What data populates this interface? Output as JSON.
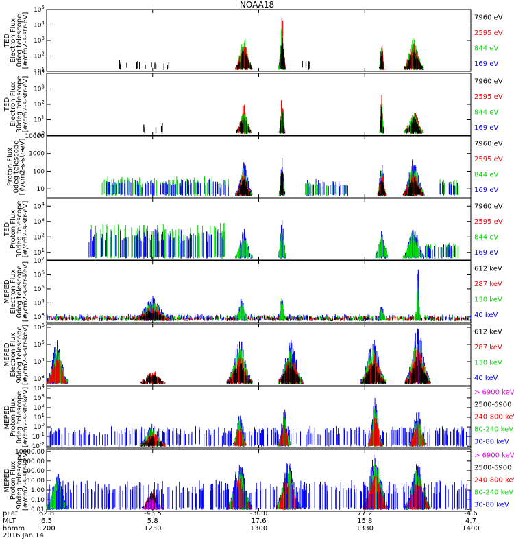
{
  "title": "NOAA18",
  "colors": {
    "black": "#000000",
    "red": "#ee0000",
    "green": "#00dd00",
    "blue": "#0000ff",
    "magenta": "#ee00ee"
  },
  "xaxis": {
    "rows": [
      {
        "label": "pLat",
        "values": [
          "62.8",
          "-43.5",
          "-30.0",
          "77.2",
          "-4.6"
        ]
      },
      {
        "label": "MLT",
        "values": [
          "6.5",
          "5.8",
          "17.6",
          "15.8",
          "4.7"
        ]
      },
      {
        "label": "hhmm",
        "values": [
          "1200",
          "1230",
          "1300",
          "1330",
          "1400"
        ]
      }
    ],
    "date": "2016 Jan 14"
  },
  "chart_data": [
    {
      "type": "line",
      "ylabel": [
        "TED",
        "Electron Flux",
        "0deg telescope",
        "[#/cm2-s-str-eV]"
      ],
      "ylabels": [
        "10^1",
        "10^2",
        "10^3",
        "10^4",
        "10^5"
      ],
      "yfirst": 1,
      "ylog": true,
      "ylim": [
        1,
        5
      ],
      "legend": [
        {
          "text": "7960 eV",
          "color": "black"
        },
        {
          "text": "2595 eV",
          "color": "red"
        },
        {
          "text": "844 eV",
          "color": "green"
        },
        {
          "text": "169 eV",
          "color": "blue"
        }
      ],
      "bursts": [
        {
          "c": 0.465,
          "w": 0.04,
          "peak": 0.52,
          "colors": [
            "green",
            "red",
            "black"
          ],
          "mode": "dense"
        },
        {
          "c": 0.555,
          "w": 0.016,
          "peak": 0.9,
          "colors": [
            "red",
            "green",
            "black"
          ],
          "mode": "dense"
        },
        {
          "c": 0.79,
          "w": 0.012,
          "peak": 0.52,
          "colors": [
            "green",
            "red",
            "black"
          ],
          "mode": "dense"
        },
        {
          "c": 0.865,
          "w": 0.045,
          "peak": 0.52,
          "colors": [
            "green",
            "red",
            "black"
          ],
          "mode": "dense"
        },
        {
          "c": 0.23,
          "w": 0.12,
          "peak": 0.12,
          "colors": [
            "black"
          ],
          "mode": "sparse"
        },
        {
          "c": 0.61,
          "w": 0.04,
          "peak": 0.12,
          "colors": [
            "black"
          ],
          "mode": "sparse"
        }
      ]
    },
    {
      "type": "line",
      "ylabel": [
        "TED",
        "Electron Flux",
        "30deg telescope",
        "[#/cm2-s-str-eV]"
      ],
      "ylabels": [
        "10^0",
        "10^1",
        "10^2",
        "10^3",
        "10^4"
      ],
      "yfirst": 0,
      "ylog": true,
      "ylim": [
        0,
        4
      ],
      "legend": [
        {
          "text": "7960 eV",
          "color": "black"
        },
        {
          "text": "2595 eV",
          "color": "red"
        },
        {
          "text": "844 eV",
          "color": "green"
        },
        {
          "text": "169 eV",
          "color": "blue"
        }
      ],
      "bursts": [
        {
          "c": 0.465,
          "w": 0.035,
          "peak": 0.45,
          "colors": [
            "red",
            "green",
            "black"
          ],
          "mode": "dense"
        },
        {
          "c": 0.555,
          "w": 0.014,
          "peak": 0.7,
          "colors": [
            "red",
            "green",
            "black"
          ],
          "mode": "dense"
        },
        {
          "c": 0.79,
          "w": 0.01,
          "peak": 0.75,
          "colors": [
            "red",
            "green",
            "black"
          ],
          "mode": "dense"
        },
        {
          "c": 0.865,
          "w": 0.045,
          "peak": 0.38,
          "colors": [
            "red",
            "green",
            "black"
          ],
          "mode": "dense"
        },
        {
          "c": 0.25,
          "w": 0.05,
          "peak": 0.15,
          "colors": [
            "black"
          ],
          "mode": "sparse"
        }
      ]
    },
    {
      "type": "line",
      "ylabel": [
        "Proton Flux",
        "0deg telescope",
        "[#/cm2-s-str-eV]"
      ],
      "ylabels": [
        "10",
        "100",
        "1000",
        "10000"
      ],
      "yfirst": 1,
      "ylog": true,
      "ylim": [
        0.5,
        4
      ],
      "legend": [
        {
          "text": "7960 eV",
          "color": "black"
        },
        {
          "text": "2595 eV",
          "color": "red"
        },
        {
          "text": "844 eV",
          "color": "green"
        },
        {
          "text": "169 eV",
          "color": "blue"
        }
      ],
      "bursts": [
        {
          "c": 0.28,
          "w": 0.3,
          "peak": 0.3,
          "colors": [
            "green",
            "blue"
          ],
          "mode": "noise"
        },
        {
          "c": 0.465,
          "w": 0.04,
          "peak": 0.55,
          "colors": [
            "blue",
            "green",
            "red",
            "black"
          ],
          "mode": "dense"
        },
        {
          "c": 0.555,
          "w": 0.014,
          "peak": 0.7,
          "colors": [
            "blue",
            "green",
            "black"
          ],
          "mode": "dense"
        },
        {
          "c": 0.79,
          "w": 0.02,
          "peak": 0.55,
          "colors": [
            "blue",
            "green",
            "red",
            "black"
          ],
          "mode": "dense"
        },
        {
          "c": 0.865,
          "w": 0.05,
          "peak": 0.6,
          "colors": [
            "blue",
            "green",
            "red",
            "black"
          ],
          "mode": "dense"
        },
        {
          "c": 0.66,
          "w": 0.1,
          "peak": 0.25,
          "colors": [
            "blue",
            "green"
          ],
          "mode": "noise"
        },
        {
          "c": 0.95,
          "w": 0.05,
          "peak": 0.25,
          "colors": [
            "green",
            "blue"
          ],
          "mode": "noise"
        }
      ]
    },
    {
      "type": "line",
      "ylabel": [
        "TED",
        "Proton Flux",
        "30deg telescope",
        "[#/cm2-s-str-eV]"
      ],
      "ylabels": [
        "10^1",
        "10^2",
        "10^3",
        "10^4"
      ],
      "yfirst": 1,
      "ylog": true,
      "ylim": [
        0.5,
        4.5
      ],
      "legend": [
        {
          "text": "7960 eV",
          "color": "black"
        },
        {
          "text": "2595 eV",
          "color": "red"
        },
        {
          "text": "844 eV",
          "color": "green"
        },
        {
          "text": "169 eV",
          "color": "blue"
        }
      ],
      "bursts": [
        {
          "c": 0.26,
          "w": 0.32,
          "peak": 0.55,
          "colors": [
            "green",
            "blue"
          ],
          "mode": "noise"
        },
        {
          "c": 0.465,
          "w": 0.04,
          "peak": 0.45,
          "colors": [
            "blue",
            "green"
          ],
          "mode": "dense"
        },
        {
          "c": 0.555,
          "w": 0.02,
          "peak": 0.6,
          "colors": [
            "blue",
            "green"
          ],
          "mode": "dense"
        },
        {
          "c": 0.79,
          "w": 0.03,
          "peak": 0.45,
          "colors": [
            "blue",
            "green"
          ],
          "mode": "dense"
        },
        {
          "c": 0.865,
          "w": 0.05,
          "peak": 0.5,
          "colors": [
            "blue",
            "green"
          ],
          "mode": "dense"
        },
        {
          "c": 0.93,
          "w": 0.08,
          "peak": 0.25,
          "colors": [
            "green",
            "blue"
          ],
          "mode": "noise"
        }
      ]
    },
    {
      "type": "line",
      "ylabel": [
        "MEPED",
        "Electron Flux",
        "0deg telescope",
        "[#/cm2-s-str-keV]"
      ],
      "ylabels": [
        "10^3",
        "10^4",
        "10^5",
        "10^6",
        "10^7"
      ],
      "yfirst": 3,
      "ylog": true,
      "ylim": [
        2.6,
        7
      ],
      "legend": [
        {
          "text": "612 keV",
          "color": "black"
        },
        {
          "text": "287 keV",
          "color": "red"
        },
        {
          "text": "130 keV",
          "color": "green"
        },
        {
          "text": "40 keV",
          "color": "blue"
        }
      ],
      "bursts": [
        {
          "c": 0.5,
          "w": 1.0,
          "peak": 0.08,
          "colors": [
            "blue",
            "green",
            "red",
            "black"
          ],
          "mode": "noise"
        },
        {
          "c": 0.25,
          "w": 0.08,
          "peak": 0.38,
          "colors": [
            "blue",
            "green",
            "red",
            "black"
          ],
          "mode": "dense"
        },
        {
          "c": 0.46,
          "w": 0.03,
          "peak": 0.35,
          "colors": [
            "blue",
            "green"
          ],
          "mode": "dense"
        },
        {
          "c": 0.555,
          "w": 0.015,
          "peak": 0.45,
          "colors": [
            "blue",
            "green"
          ],
          "mode": "dense"
        },
        {
          "c": 0.79,
          "w": 0.02,
          "peak": 0.25,
          "colors": [
            "blue",
            "green"
          ],
          "mode": "dense"
        },
        {
          "c": 0.875,
          "w": 0.012,
          "peak": 0.92,
          "colors": [
            "blue",
            "green"
          ],
          "mode": "dense"
        }
      ]
    },
    {
      "type": "line",
      "ylabel": [
        "MEPED",
        "Electron Flux",
        "90deg telescope",
        "[#/cm2-s-str-keV]"
      ],
      "ylabels": [
        "10^3",
        "10^4",
        "10^5",
        "10^6"
      ],
      "yfirst": 3,
      "ylog": true,
      "ylim": [
        2.6,
        6.2
      ],
      "legend": [
        {
          "text": "612 keV",
          "color": "black"
        },
        {
          "text": "287 keV",
          "color": "red"
        },
        {
          "text": "130 keV",
          "color": "green"
        },
        {
          "text": "40 keV",
          "color": "blue"
        }
      ],
      "bursts": [
        {
          "c": 0.025,
          "w": 0.05,
          "peak": 0.7,
          "colors": [
            "blue",
            "green",
            "red"
          ],
          "mode": "dense"
        },
        {
          "c": 0.25,
          "w": 0.06,
          "peak": 0.2,
          "colors": [
            "red",
            "black"
          ],
          "mode": "dense"
        },
        {
          "c": 0.455,
          "w": 0.06,
          "peak": 0.72,
          "colors": [
            "blue",
            "green",
            "red",
            "black"
          ],
          "mode": "dense"
        },
        {
          "c": 0.575,
          "w": 0.06,
          "peak": 0.72,
          "colors": [
            "blue",
            "green",
            "red",
            "black"
          ],
          "mode": "dense"
        },
        {
          "c": 0.77,
          "w": 0.06,
          "peak": 0.72,
          "colors": [
            "blue",
            "green",
            "red",
            "black"
          ],
          "mode": "dense"
        },
        {
          "c": 0.875,
          "w": 0.06,
          "peak": 0.9,
          "colors": [
            "blue",
            "green",
            "red",
            "black"
          ],
          "mode": "dense"
        }
      ]
    },
    {
      "type": "line",
      "ylabel": [
        "MEPED",
        "Proton Flux",
        "0deg telescope",
        "[#/cm2-s-str-keV]"
      ],
      "ylabels": [
        "10^-2",
        "10^-1",
        "10^0",
        "10^1",
        "10^2",
        "10^3",
        "10^4"
      ],
      "yfirst": -2,
      "ylog": true,
      "ylim": [
        -2.2,
        4.2
      ],
      "legend": [
        {
          "text": "> 6900 keV",
          "color": "magenta"
        },
        {
          "text": "2500-6900",
          "color": "black"
        },
        {
          "text": "240-800 keV",
          "color": "red"
        },
        {
          "text": "80-240 keV",
          "color": "green"
        },
        {
          "text": "30-80 keV",
          "color": "blue"
        }
      ],
      "bursts": [
        {
          "c": 0.5,
          "w": 1.0,
          "peak": 0.3,
          "colors": [
            "blue"
          ],
          "mode": "noise"
        },
        {
          "c": 0.25,
          "w": 0.06,
          "peak": 0.35,
          "colors": [
            "blue",
            "green",
            "red",
            "black"
          ],
          "mode": "dense"
        },
        {
          "c": 0.455,
          "w": 0.03,
          "peak": 0.55,
          "colors": [
            "blue",
            "green",
            "red"
          ],
          "mode": "dense"
        },
        {
          "c": 0.56,
          "w": 0.03,
          "peak": 0.6,
          "colors": [
            "blue",
            "green",
            "red"
          ],
          "mode": "dense"
        },
        {
          "c": 0.775,
          "w": 0.035,
          "peak": 0.78,
          "colors": [
            "blue",
            "green",
            "red"
          ],
          "mode": "dense"
        },
        {
          "c": 0.875,
          "w": 0.04,
          "peak": 0.62,
          "colors": [
            "blue",
            "green",
            "red"
          ],
          "mode": "dense"
        }
      ]
    },
    {
      "type": "line",
      "ylabel": [
        "MEPED",
        "Proton Flux",
        "90deg telescope",
        "[#/cm2-s-str-keV]"
      ],
      "ylabels": [
        "0.01",
        "0.10",
        "1.00",
        "10.00",
        "100.00",
        "1000.00",
        "10000.00"
      ],
      "yfirst": -2,
      "ylog": true,
      "ylim": [
        -2.2,
        4.2
      ],
      "legend": [
        {
          "text": "> 6900 keV",
          "color": "magenta"
        },
        {
          "text": "2500-6900",
          "color": "black"
        },
        {
          "text": "240-800 keV",
          "color": "red"
        },
        {
          "text": "80-240 keV",
          "color": "green"
        },
        {
          "text": "30-80 keV",
          "color": "blue"
        }
      ],
      "bursts": [
        {
          "c": 0.025,
          "w": 0.05,
          "peak": 0.6,
          "colors": [
            "blue",
            "green"
          ],
          "mode": "dense"
        },
        {
          "c": 0.25,
          "w": 0.05,
          "peak": 0.32,
          "colors": [
            "red",
            "black",
            "magenta"
          ],
          "mode": "dense"
        },
        {
          "c": 0.455,
          "w": 0.06,
          "peak": 0.78,
          "colors": [
            "blue",
            "green",
            "red"
          ],
          "mode": "dense"
        },
        {
          "c": 0.57,
          "w": 0.06,
          "peak": 0.78,
          "colors": [
            "blue",
            "green",
            "red"
          ],
          "mode": "dense"
        },
        {
          "c": 0.775,
          "w": 0.06,
          "peak": 0.92,
          "colors": [
            "blue",
            "green",
            "red"
          ],
          "mode": "dense"
        },
        {
          "c": 0.875,
          "w": 0.06,
          "peak": 0.78,
          "colors": [
            "blue",
            "green",
            "red"
          ],
          "mode": "dense"
        },
        {
          "c": 0.5,
          "w": 1.0,
          "peak": 0.45,
          "colors": [
            "blue"
          ],
          "mode": "noise"
        }
      ]
    }
  ]
}
